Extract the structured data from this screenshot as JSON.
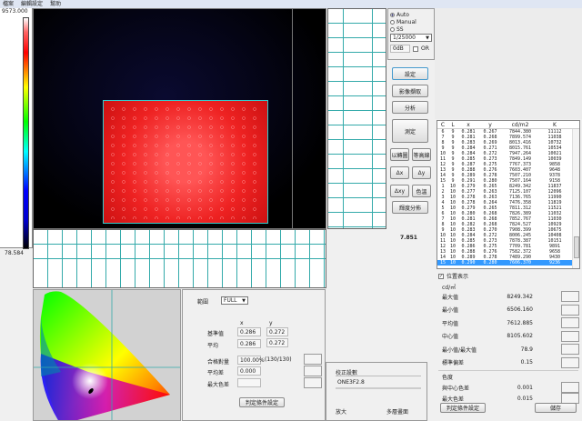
{
  "menu": [
    "檔案",
    "編輯設定",
    "幫助"
  ],
  "scale": {
    "max": "9573.000",
    "min": "78.584"
  },
  "center_value": "7.851",
  "exposure": {
    "options": [
      "Auto",
      "Manual",
      "SS"
    ],
    "selected": "Auto",
    "shutter": "1/25000",
    "gain": "0dB",
    "or_label": "OR",
    "or_checked": false
  },
  "buttons": {
    "setup": "設定",
    "capture": "影像擷取",
    "analyze": "分析",
    "measure": "測定",
    "map3d": "以轉圖",
    "contour": "等高線",
    "dx": "Δx",
    "dy": "Δy",
    "dxy": "Δxy",
    "color_temp": "色溫",
    "lum_dist": "輝度分佈"
  },
  "table": {
    "headers": [
      "C",
      "L",
      "x",
      "y",
      "cd/m2",
      "K"
    ],
    "rows": [
      [
        "6",
        "9",
        "0.281",
        "0.267",
        "7844.380",
        "11112"
      ],
      [
        "7",
        "9",
        "0.281",
        "0.268",
        "7899.574",
        "11038"
      ],
      [
        "8",
        "9",
        "0.283",
        "0.269",
        "8013.416",
        "10732"
      ],
      [
        "9",
        "9",
        "0.284",
        "0.271",
        "8015.761",
        "10534"
      ],
      [
        "10",
        "9",
        "0.284",
        "0.272",
        "7947.264",
        "10021"
      ],
      [
        "11",
        "9",
        "0.285",
        "0.273",
        "7849.149",
        "10039"
      ],
      [
        "12",
        "9",
        "0.287",
        "0.275",
        "7767.373",
        "9858"
      ],
      [
        "13",
        "9",
        "0.288",
        "0.276",
        "7603.407",
        "9648"
      ],
      [
        "14",
        "9",
        "0.289",
        "0.278",
        "7507.210",
        "9378"
      ],
      [
        "15",
        "9",
        "0.291",
        "0.280",
        "7507.164",
        "9158"
      ],
      [
        "1",
        "10",
        "0.279",
        "0.265",
        "8249.342",
        "11837"
      ],
      [
        "2",
        "10",
        "0.277",
        "0.263",
        "7125.107",
        "12096"
      ],
      [
        "3",
        "10",
        "0.278",
        "0.263",
        "7136.765",
        "11990"
      ],
      [
        "4",
        "10",
        "0.278",
        "0.264",
        "7476.358",
        "11819"
      ],
      [
        "5",
        "10",
        "0.279",
        "0.265",
        "7811.312",
        "11521"
      ],
      [
        "6",
        "10",
        "0.280",
        "0.268",
        "7826.389",
        "11032"
      ],
      [
        "7",
        "10",
        "0.281",
        "0.268",
        "7852.767",
        "11030"
      ],
      [
        "8",
        "10",
        "0.282",
        "0.268",
        "7824.527",
        "10929"
      ],
      [
        "9",
        "10",
        "0.283",
        "0.270",
        "7908.399",
        "10675"
      ],
      [
        "10",
        "10",
        "0.284",
        "0.272",
        "8006.245",
        "10408"
      ],
      [
        "11",
        "10",
        "0.285",
        "0.273",
        "7878.387",
        "10151"
      ],
      [
        "12",
        "10",
        "0.286",
        "0.275",
        "7709.781",
        "9891"
      ],
      [
        "13",
        "10",
        "0.288",
        "0.276",
        "7582.372",
        "9658"
      ],
      [
        "14",
        "10",
        "0.289",
        "0.278",
        "7489.290",
        "9430"
      ],
      [
        "15",
        "10",
        "0.290",
        "0.280",
        "7606.370",
        "9236"
      ]
    ],
    "selected_index": 24
  },
  "stats": {
    "show_position_label": "位置表示",
    "show_position": true,
    "lum_title": "cd/㎡",
    "rows": [
      {
        "k": "最大值",
        "v": "8249.342"
      },
      {
        "k": "最小值",
        "v": "6506.160"
      },
      {
        "k": "平均值",
        "v": "7612.885"
      },
      {
        "k": "中心值",
        "v": "8105.602"
      },
      {
        "k": "最小值/最大值",
        "v": "78.9"
      },
      {
        "k": "標準偏差",
        "v": "0.15"
      }
    ],
    "chroma_title": "色度",
    "chroma_rows": [
      {
        "k": "與中心色差",
        "v": "0.001"
      },
      {
        "k": "最大色差",
        "v": "0.015"
      }
    ],
    "criteria_button": "判定條件設定",
    "save_button": "儲存"
  },
  "judge": {
    "range_label": "範圍",
    "range_value": "FULL",
    "x_header": "x",
    "y_header": "y",
    "ref_label": "基準值",
    "ref_x": "0.286",
    "ref_y": "0.272",
    "avg_label": "平均",
    "avg_x": "0.286",
    "avg_y": "0.272",
    "pass_label": "合格對量",
    "pass_value": "100.00%",
    "pass_count": "(130/130)",
    "avgdiff_label": "平均差",
    "avgdiff_value": "0.000",
    "maxdiff_label": "最大色差",
    "maxdiff_value": "",
    "criteria_button": "判定條件設定"
  },
  "calib": {
    "title": "校正設數",
    "value": "ONE3F2.8",
    "zoom_label": "放大",
    "multi_label": "多層畫面"
  }
}
